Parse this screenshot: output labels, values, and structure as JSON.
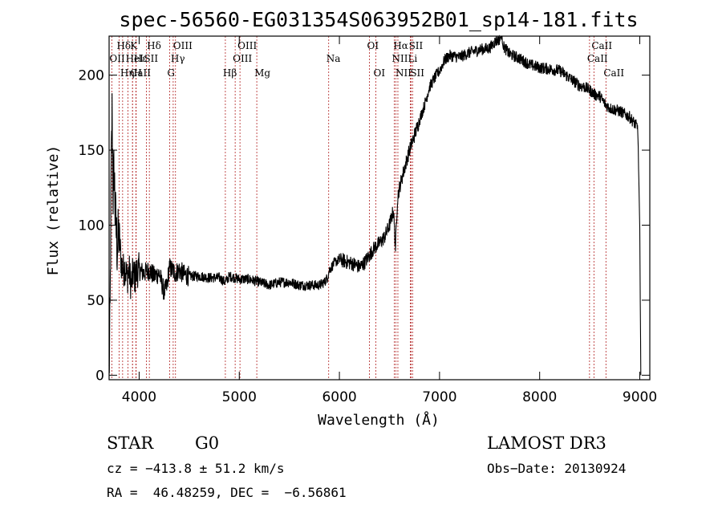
{
  "chart_data": {
    "type": "line",
    "title": "spec-56560-EG031354S063952B01_sp14-181.fits",
    "xlabel": "Wavelength (Å)",
    "ylabel": "Flux (relative)",
    "xlim": [
      3700,
      9100
    ],
    "ylim": [
      -3,
      226
    ],
    "xticks": [
      4000,
      5000,
      6000,
      7000,
      8000,
      9000
    ],
    "yticks": [
      0,
      50,
      100,
      150,
      200
    ],
    "grid": false,
    "series": [
      {
        "x": [
          3700,
          3710,
          3720,
          3730,
          3740,
          3750,
          3760,
          3780,
          3800,
          3820,
          3840,
          3860,
          3880,
          3900,
          3920,
          3940,
          3960,
          3980,
          4000,
          4050,
          4100,
          4150,
          4200,
          4250,
          4280,
          4300,
          4330,
          4360,
          4400,
          4450,
          4500,
          4600,
          4700,
          4800,
          4860,
          4900,
          5000,
          5100,
          5200,
          5300,
          5400,
          5500,
          5600,
          5700,
          5800,
          5850,
          5880,
          5900,
          5920,
          5950,
          6000,
          6050,
          6100,
          6150,
          6200,
          6250,
          6300,
          6350,
          6400,
          6450,
          6500,
          6540,
          6560,
          6580,
          6600,
          6650,
          6700,
          6750,
          6800,
          6850,
          6900,
          6950,
          7000,
          7050,
          7100,
          7200,
          7300,
          7400,
          7500,
          7550,
          7600,
          7620,
          7640,
          7700,
          7800,
          7900,
          8000,
          8100,
          8200,
          8300,
          8400,
          8450,
          8500,
          8550,
          8600,
          8650,
          8700,
          8800,
          8900,
          8980,
          9000,
          9010
        ],
        "values": [
          0,
          40,
          130,
          175,
          120,
          140,
          110,
          85,
          95,
          75,
          70,
          72,
          65,
          70,
          60,
          68,
          65,
          70,
          70,
          68,
          70,
          66,
          68,
          55,
          60,
          72,
          70,
          68,
          70,
          67,
          66,
          66,
          65,
          65,
          62,
          66,
          64,
          64,
          62,
          60,
          62,
          62,
          60,
          60,
          60,
          62,
          65,
          70,
          72,
          75,
          77,
          76,
          75,
          74,
          72,
          75,
          80,
          85,
          88,
          92,
          100,
          110,
          85,
          118,
          125,
          138,
          150,
          160,
          170,
          180,
          192,
          198,
          203,
          210,
          213,
          212,
          215,
          217,
          218,
          222,
          224,
          228,
          219,
          214,
          211,
          207,
          205,
          204,
          203,
          198,
          193,
          192,
          190,
          187,
          186,
          181,
          178,
          176,
          172,
          165,
          98,
          0
        ]
      }
    ],
    "lines": [
      {
        "label": "OII",
        "wavelength": 3727,
        "row": 2
      },
      {
        "label": "CaII",
        "wavelength": 3934,
        "row": 3
      },
      {
        "label": "Hδ",
        "wavelength": 4102,
        "row": 1
      },
      {
        "label": "Hε",
        "wavelength": 3970,
        "row": 2
      },
      {
        "label": "Hη",
        "wavelength": 3835,
        "row": 3
      },
      {
        "label": "K",
        "wavelength": 3934,
        "row": 1
      },
      {
        "label": "HeI",
        "wavelength": 3889,
        "row": 2
      },
      {
        "label": "H",
        "wavelength": 3968,
        "row": 3
      },
      {
        "label": "Hδ",
        "wavelength": 3800,
        "row": 1
      },
      {
        "label": "SII",
        "wavelength": 4072,
        "row": 2
      },
      {
        "label": "OIII",
        "wavelength": 4363,
        "row": 1
      },
      {
        "label": "Hγ",
        "wavelength": 4340,
        "row": 2
      },
      {
        "label": "G",
        "wavelength": 4304,
        "row": 3
      },
      {
        "label": "Hβ",
        "wavelength": 4861,
        "row": 3
      },
      {
        "label": "OIII",
        "wavelength": 5007,
        "row": 1
      },
      {
        "label": "OIII",
        "wavelength": 4959,
        "row": 2
      },
      {
        "label": "Mg",
        "wavelength": 5175,
        "row": 3
      },
      {
        "label": "Na",
        "wavelength": 5893,
        "row": 2
      },
      {
        "label": "OI",
        "wavelength": 6300,
        "row": 1
      },
      {
        "label": "OI",
        "wavelength": 6364,
        "row": 3
      },
      {
        "label": "Hα",
        "wavelength": 6563,
        "row": 1
      },
      {
        "label": "NII",
        "wavelength": 6548,
        "row": 2
      },
      {
        "label": "NII",
        "wavelength": 6584,
        "row": 3
      },
      {
        "label": "SII",
        "wavelength": 6717,
        "row": 1
      },
      {
        "label": "Li",
        "wavelength": 6708,
        "row": 2
      },
      {
        "label": "SII",
        "wavelength": 6731,
        "row": 3
      },
      {
        "label": "CaII",
        "wavelength": 8542,
        "row": 1
      },
      {
        "label": "CaII",
        "wavelength": 8498,
        "row": 2
      },
      {
        "label": "CaII",
        "wavelength": 8662,
        "row": 3
      }
    ]
  },
  "info": {
    "object_type": "STAR",
    "subclass": "G0",
    "survey": "LAMOST DR3",
    "cz": "cz = −413.8 ± 51.2 km/s",
    "obs_date": "Obs−Date: 20130924",
    "coords": "RA =  46.48259, DEC =  −6.56861"
  },
  "colors": {
    "spectrum": "#000000",
    "line_marker": "#b22222",
    "axis": "#000000",
    "background": "#ffffff"
  }
}
